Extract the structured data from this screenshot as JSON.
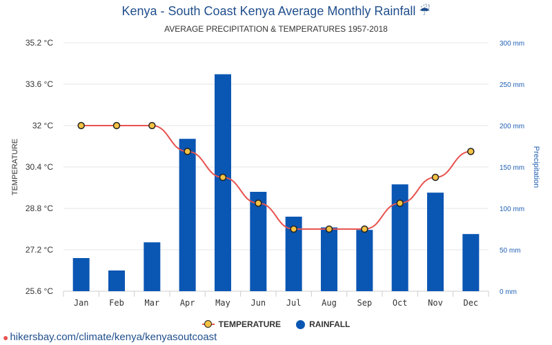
{
  "title": "Kenya - South Coast Kenya Average Monthly Rainfall ☔",
  "subtitle": "AVERAGE PRECIPITATION & TEMPERATURES 1957-2018",
  "footer_url": "hikersbay.com/climate/kenya/kenyasoutcoast",
  "colors": {
    "bar": "#0a56b3",
    "line": "#e8534f",
    "marker_fill": "#f5c243",
    "right_axis": "#1f5fb4"
  },
  "chart_data": {
    "type": "bar",
    "categories": [
      "Jan",
      "Feb",
      "Mar",
      "Apr",
      "May",
      "Jun",
      "Jul",
      "Aug",
      "Sep",
      "Oct",
      "Nov",
      "Dec"
    ],
    "series": [
      {
        "name": "RAINFALL",
        "axis": "right",
        "type": "bar",
        "unit": "mm",
        "values": [
          40,
          25,
          59,
          184,
          262,
          120,
          90,
          77,
          74,
          129,
          119,
          69
        ]
      },
      {
        "name": "TEMPERATURE",
        "axis": "left",
        "type": "line",
        "unit": "°C",
        "values": [
          32.0,
          32.0,
          32.0,
          31.0,
          30.0,
          29.0,
          28.0,
          28.0,
          28.0,
          29.0,
          30.0,
          31.0
        ]
      }
    ],
    "ylabel_left": "TEMPERATURE",
    "ylabel_right": "Precipitation",
    "ylim_left": [
      25.6,
      35.2
    ],
    "ylim_right": [
      0,
      300
    ],
    "left_ticks": [
      "25.6 °C",
      "27.2 °C",
      "28.8 °C",
      "30.4 °C",
      "32 °C",
      "33.6 °C",
      "35.2 °C"
    ],
    "right_ticks": [
      "0 mm",
      "50 mm",
      "100 mm",
      "150 mm",
      "200 mm",
      "250 mm",
      "300 mm"
    ],
    "grid": true,
    "legend": {
      "position": "bottom",
      "entries": [
        "TEMPERATURE",
        "RAINFALL"
      ]
    }
  }
}
